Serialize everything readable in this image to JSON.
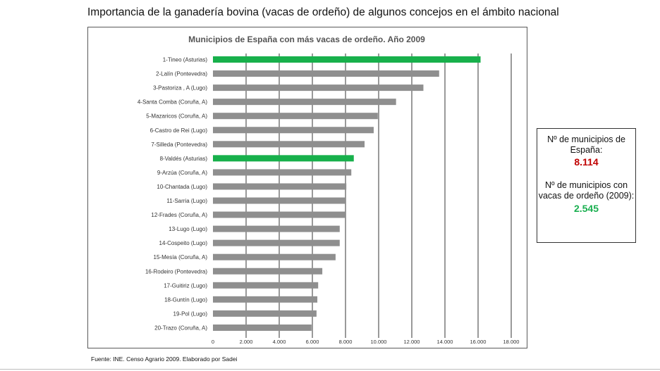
{
  "page": {
    "title": "Importancia de la ganadería bovina (vacas de ordeño) de algunos concejos en el ámbito nacional",
    "source": "Fuente: INE. Censo Agrario 2009. Elaborado por Sadei"
  },
  "info_box": {
    "label1": "Nº de municipios de España:",
    "value1": "8.114",
    "label2": "Nº de municipios con vacas de ordeño (2009):",
    "value2": "2.545"
  },
  "colors": {
    "bar": "#8f8f8f",
    "highlight": "#17b04b",
    "red": "#c00000",
    "green": "#1aaf50",
    "gridline": "#000000"
  },
  "chart_data": {
    "type": "bar",
    "orientation": "horizontal",
    "title": "Municipios de España con más vacas de ordeño. Año 2009",
    "categories": [
      "1-Tineo (Asturias)",
      "2-Lalín (Pontevedra)",
      "3-Pastoriza , A (Lugo)",
      "4-Santa Comba (Coruña, A)",
      "5-Mazaricos (Coruña, A)",
      "6-Castro de Rei (Lugo)",
      "7-Silleda (Pontevedra)",
      "8-Valdés (Asturias)",
      "9-Arzúa (Coruña, A)",
      "10-Chantada (Lugo)",
      "11-Sarria (Lugo)",
      "12-Frades (Coruña, A)",
      "13-Lugo (Lugo)",
      "14-Cospeito (Lugo)",
      "15-Mesía (Coruña, A)",
      "16-Rodeiro (Pontevedra)",
      "17-Guitiriz (Lugo)",
      "18-Guntín (Lugo)",
      "19-Pol (Lugo)",
      "20-Trazo (Coruña, A)"
    ],
    "values": [
      16150,
      13650,
      12700,
      11050,
      9950,
      9700,
      9150,
      8500,
      8350,
      8050,
      8000,
      8000,
      7650,
      7650,
      7400,
      6600,
      6350,
      6300,
      6250,
      5950
    ],
    "highlighted": [
      "1-Tineo (Asturias)",
      "8-Valdés (Asturias)"
    ],
    "xlim": [
      0,
      18000
    ],
    "xticks": [
      0,
      2000,
      4000,
      6000,
      8000,
      10000,
      12000,
      14000,
      16000,
      18000
    ],
    "xtick_labels": [
      "0",
      "2.000",
      "4.000",
      "6.000",
      "8.000",
      "10.000",
      "12.000",
      "14.000",
      "16.000",
      "18.000"
    ],
    "xlabel": "",
    "ylabel": "",
    "grid": "vertical gridlines",
    "legend": "none"
  }
}
